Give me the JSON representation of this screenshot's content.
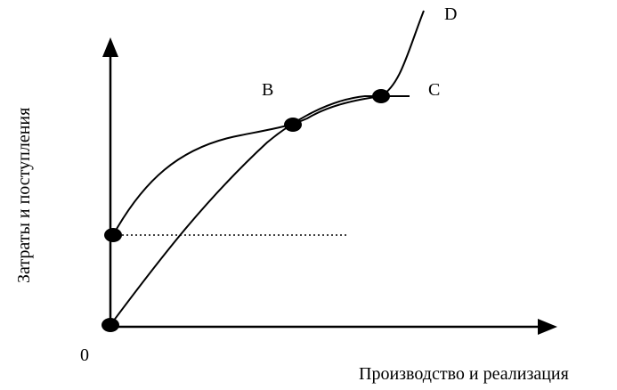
{
  "axes": {
    "x_label": "Производство и реализация",
    "y_label": "Затраты и поступления",
    "origin_label": "0"
  },
  "points": {
    "b": "B",
    "c": "C",
    "d": "D"
  },
  "colors": {
    "ink": "#000000",
    "background": "#ffffff"
  }
}
